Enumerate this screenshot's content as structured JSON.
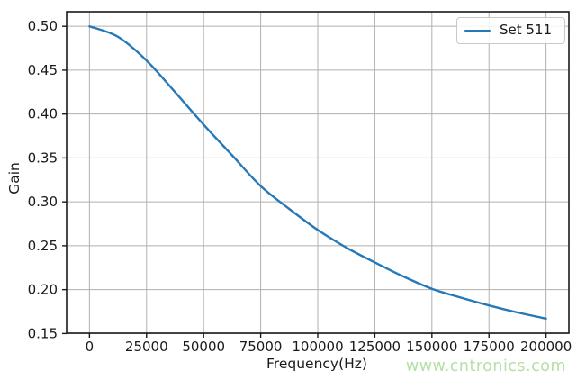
{
  "watermark": {
    "text": "www.cntronics.com",
    "color": "#b5e0a6"
  },
  "chart_data": {
    "type": "line",
    "title": "",
    "xlabel": "Frequency(Hz)",
    "ylabel": "Gain",
    "grid": true,
    "legend_position": "upper right",
    "xlim": [
      -10000,
      210000
    ],
    "ylim": [
      0.1504,
      0.5166
    ],
    "x_ticks": [
      0,
      25000,
      50000,
      75000,
      100000,
      125000,
      150000,
      175000,
      200000
    ],
    "x_tick_labels": [
      "0",
      "25000",
      "50000",
      "75000",
      "100000",
      "125000",
      "150000",
      "175000",
      "200000"
    ],
    "y_ticks": [
      0.15,
      0.2,
      0.25,
      0.3,
      0.35,
      0.4,
      0.45,
      0.5
    ],
    "y_tick_labels": [
      "0.15",
      "0.20",
      "0.25",
      "0.30",
      "0.35",
      "0.40",
      "0.45",
      "0.50"
    ],
    "line_color": "#2679b8",
    "grid_color": "#b0b0b0",
    "spine_color": "#1a1a1a",
    "text_color": "#1a1a1a",
    "series": [
      {
        "name": "Set 511",
        "x": [
          0,
          12500,
          25000,
          37500,
          50000,
          62500,
          75000,
          87500,
          100000,
          112500,
          125000,
          137500,
          150000,
          162500,
          175000,
          187500,
          200000
        ],
        "y": [
          0.5,
          0.488,
          0.461,
          0.425,
          0.388,
          0.353,
          0.318,
          0.292,
          0.268,
          0.248,
          0.231,
          0.215,
          0.201,
          0.191,
          0.182,
          0.174,
          0.167
        ]
      }
    ]
  }
}
